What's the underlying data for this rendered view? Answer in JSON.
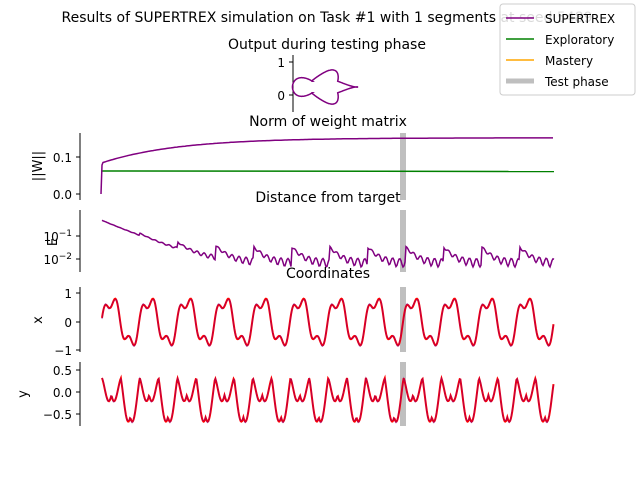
{
  "figure": {
    "title": "Results of SUPERTREX simulation on Task #1 with 1 segments at seed 5489"
  },
  "colors": {
    "supertrex": "#800080",
    "exploratory": "#008000",
    "mastery": "#ffa500",
    "test_phase": "#bfbfbf",
    "target": "#ff0000"
  },
  "legend": {
    "placement": "top-right",
    "items": [
      {
        "label": "SUPERTREX",
        "color": "#800080"
      },
      {
        "label": "Exploratory",
        "color": "#008000"
      },
      {
        "label": "Mastery",
        "color": "#ffa500"
      },
      {
        "label": "Test phase",
        "color": "#bfbfbf"
      }
    ]
  },
  "chart_data": [
    {
      "id": "output",
      "type": "line",
      "title": "Output during testing phase",
      "xlabel": "",
      "ylabel": "",
      "yticks": [
        "1",
        "0"
      ],
      "ylim": [
        -1,
        1
      ],
      "shape": "butterfly curve (x, y output trajectory)"
    },
    {
      "id": "norm",
      "type": "line",
      "title": "Norm of weight matrix",
      "ylabel": "||W||",
      "yticks": [
        "0.0",
        "0.1"
      ],
      "ylim": [
        0,
        0.16
      ],
      "test_phase_start_fraction": 0.64,
      "series": [
        {
          "name": "SUPERTREX",
          "values_summary": "rises from 0.0 to ~0.085 quickly, then saturates near 0.155"
        },
        {
          "name": "Exploratory",
          "values_summary": "constant near 0.063"
        }
      ]
    },
    {
      "id": "distance",
      "type": "line",
      "title": "Distance from target",
      "ylabel": "E",
      "yscale": "log",
      "yticks": [
        "10^-1",
        "10^-2"
      ],
      "ylim": [
        0.004,
        0.55
      ],
      "series": [
        {
          "name": "SUPERTREX",
          "values_summary": "decays from ~0.45 to oscillate between ~0.005 and ~0.03"
        }
      ]
    },
    {
      "id": "x",
      "type": "line",
      "title": "Coordinates",
      "ylabel": "x",
      "yticks": [
        "1",
        "0",
        "−1"
      ],
      "ylim": [
        -1,
        1
      ],
      "series": [
        {
          "name": "SUPERTREX",
          "values_summary": "periodic, overlapping target"
        },
        {
          "name": "target",
          "values_summary": "periodic butterfly x-coordinate, ~12 cycles"
        }
      ]
    },
    {
      "id": "y",
      "type": "line",
      "title": "",
      "ylabel": "y",
      "yticks": [
        "0.5",
        "0.0",
        "−0.5"
      ],
      "ylim": [
        -0.75,
        0.6
      ],
      "series": [
        {
          "name": "SUPERTREX",
          "values_summary": "periodic, overlapping target"
        },
        {
          "name": "target",
          "values_summary": "periodic butterfly y-coordinate, ~12 cycles"
        }
      ]
    }
  ]
}
